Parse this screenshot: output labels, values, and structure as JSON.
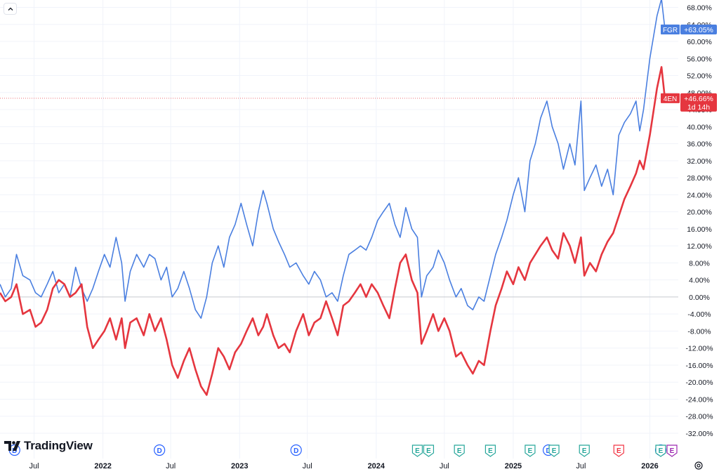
{
  "collapse_icon": "chevron-up-icon",
  "logo": {
    "text": "TradingView",
    "icon": "tradingview-logo-icon"
  },
  "settings_icon": "gear-icon",
  "colors": {
    "fgr": "#4a7fe0",
    "4en": "#e5363f",
    "zero_line": "#c7c9cf",
    "grid": "#f0f3fa",
    "axis_text": "#131722"
  },
  "chart_data": {
    "type": "line",
    "y_unit": "%",
    "ylim": [
      -32,
      68
    ],
    "y_ticks": [
      "68.00%",
      "64.00%",
      "60.00%",
      "56.00%",
      "52.00%",
      "48.00%",
      "44.00%",
      "40.00%",
      "36.00%",
      "32.00%",
      "28.00%",
      "24.00%",
      "20.00%",
      "16.00%",
      "12.00%",
      "8.00%",
      "4.00%",
      "0.00%",
      "-4.00%",
      "-8.00%",
      "-12.00%",
      "-16.00%",
      "-20.00%",
      "-24.00%",
      "-28.00%",
      "-32.00%"
    ],
    "x_ticks": [
      {
        "label": "Jul",
        "date": "2021-07-01",
        "bold": false
      },
      {
        "label": "2022",
        "date": "2022-01-01",
        "bold": true
      },
      {
        "label": "Jul",
        "date": "2022-07-01",
        "bold": false
      },
      {
        "label": "2023",
        "date": "2023-01-01",
        "bold": true
      },
      {
        "label": "Jul",
        "date": "2023-07-01",
        "bold": false
      },
      {
        "label": "2024",
        "date": "2024-01-01",
        "bold": true
      },
      {
        "label": "Jul",
        "date": "2024-07-01",
        "bold": false
      },
      {
        "label": "2025",
        "date": "2025-01-01",
        "bold": true
      },
      {
        "label": "Jul",
        "date": "2025-07-01",
        "bold": false
      },
      {
        "label": "2026",
        "date": "2026-01-01",
        "bold": true
      }
    ],
    "xlim": [
      "2021-04-01",
      "2026-03-01"
    ],
    "series": [
      {
        "name": "FGR",
        "color": "#4a7fe0",
        "last_label": "+63.05%",
        "points": [
          [
            "2021-04-01",
            3
          ],
          [
            "2021-04-15",
            0
          ],
          [
            "2021-05-01",
            2
          ],
          [
            "2021-05-15",
            10
          ],
          [
            "2021-06-01",
            5
          ],
          [
            "2021-06-20",
            4
          ],
          [
            "2021-07-05",
            1
          ],
          [
            "2021-07-20",
            0
          ],
          [
            "2021-08-05",
            3
          ],
          [
            "2021-08-20",
            6
          ],
          [
            "2021-09-05",
            1
          ],
          [
            "2021-09-20",
            3
          ],
          [
            "2021-10-05",
            0
          ],
          [
            "2021-10-20",
            7
          ],
          [
            "2021-11-05",
            2
          ],
          [
            "2021-11-20",
            -1
          ],
          [
            "2021-12-05",
            2
          ],
          [
            "2021-12-20",
            6
          ],
          [
            "2022-01-05",
            10
          ],
          [
            "2022-01-20",
            7
          ],
          [
            "2022-02-05",
            14
          ],
          [
            "2022-02-20",
            8
          ],
          [
            "2022-03-01",
            -1
          ],
          [
            "2022-03-15",
            6
          ],
          [
            "2022-04-01",
            10
          ],
          [
            "2022-04-20",
            7
          ],
          [
            "2022-05-05",
            10
          ],
          [
            "2022-05-20",
            9
          ],
          [
            "2022-06-05",
            4
          ],
          [
            "2022-06-20",
            7
          ],
          [
            "2022-07-05",
            0
          ],
          [
            "2022-07-20",
            2
          ],
          [
            "2022-08-05",
            6
          ],
          [
            "2022-08-20",
            2
          ],
          [
            "2022-09-05",
            -3
          ],
          [
            "2022-09-20",
            -5
          ],
          [
            "2022-10-05",
            0
          ],
          [
            "2022-10-20",
            8
          ],
          [
            "2022-11-05",
            12
          ],
          [
            "2022-11-20",
            7
          ],
          [
            "2022-12-05",
            14
          ],
          [
            "2022-12-20",
            17
          ],
          [
            "2023-01-05",
            22
          ],
          [
            "2023-01-20",
            17
          ],
          [
            "2023-02-05",
            12
          ],
          [
            "2023-02-20",
            20
          ],
          [
            "2023-03-05",
            25
          ],
          [
            "2023-03-15",
            22
          ],
          [
            "2023-04-01",
            16
          ],
          [
            "2023-04-15",
            13
          ],
          [
            "2023-05-01",
            10
          ],
          [
            "2023-05-15",
            7
          ],
          [
            "2023-06-01",
            8
          ],
          [
            "2023-06-20",
            5
          ],
          [
            "2023-07-05",
            3
          ],
          [
            "2023-07-20",
            6
          ],
          [
            "2023-08-05",
            4
          ],
          [
            "2023-08-20",
            0
          ],
          [
            "2023-09-05",
            1
          ],
          [
            "2023-09-20",
            -1
          ],
          [
            "2023-10-05",
            5
          ],
          [
            "2023-10-20",
            10
          ],
          [
            "2023-11-05",
            11
          ],
          [
            "2023-11-20",
            12
          ],
          [
            "2023-12-05",
            11
          ],
          [
            "2023-12-20",
            14
          ],
          [
            "2024-01-05",
            18
          ],
          [
            "2024-01-20",
            20
          ],
          [
            "2024-02-05",
            22
          ],
          [
            "2024-02-20",
            17
          ],
          [
            "2024-03-05",
            14
          ],
          [
            "2024-03-20",
            21
          ],
          [
            "2024-04-05",
            16
          ],
          [
            "2024-04-20",
            14
          ],
          [
            "2024-05-01",
            0
          ],
          [
            "2024-05-15",
            5
          ],
          [
            "2024-06-01",
            7
          ],
          [
            "2024-06-15",
            11
          ],
          [
            "2024-07-01",
            8
          ],
          [
            "2024-07-15",
            4
          ],
          [
            "2024-08-01",
            0
          ],
          [
            "2024-08-15",
            2
          ],
          [
            "2024-09-01",
            -2
          ],
          [
            "2024-09-15",
            -3
          ],
          [
            "2024-10-01",
            0
          ],
          [
            "2024-10-15",
            -1
          ],
          [
            "2024-11-01",
            5
          ],
          [
            "2024-11-15",
            10
          ],
          [
            "2024-12-01",
            14
          ],
          [
            "2024-12-15",
            18
          ],
          [
            "2025-01-01",
            24
          ],
          [
            "2025-01-15",
            28
          ],
          [
            "2025-02-01",
            20
          ],
          [
            "2025-02-15",
            32
          ],
          [
            "2025-03-01",
            36
          ],
          [
            "2025-03-15",
            42
          ],
          [
            "2025-04-01",
            46
          ],
          [
            "2025-04-15",
            40
          ],
          [
            "2025-05-01",
            36
          ],
          [
            "2025-05-15",
            30
          ],
          [
            "2025-06-01",
            36
          ],
          [
            "2025-06-15",
            31
          ],
          [
            "2025-07-01",
            46
          ],
          [
            "2025-07-10",
            25
          ],
          [
            "2025-07-25",
            28
          ],
          [
            "2025-08-10",
            31
          ],
          [
            "2025-08-25",
            26
          ],
          [
            "2025-09-10",
            30
          ],
          [
            "2025-09-25",
            24
          ],
          [
            "2025-10-10",
            38
          ],
          [
            "2025-10-25",
            41
          ],
          [
            "2025-11-10",
            43
          ],
          [
            "2025-11-25",
            46
          ],
          [
            "2025-12-05",
            39
          ],
          [
            "2025-12-15",
            44
          ],
          [
            "2026-01-01",
            56
          ],
          [
            "2026-01-20",
            66
          ],
          [
            "2026-02-01",
            70
          ],
          [
            "2026-02-10",
            63.05
          ]
        ]
      },
      {
        "name": "4EN",
        "color": "#e5363f",
        "last_label": "+46.66%",
        "sub_label": "1d 14h",
        "points": [
          [
            "2021-04-01",
            1
          ],
          [
            "2021-04-15",
            -1
          ],
          [
            "2021-05-01",
            0
          ],
          [
            "2021-05-15",
            3
          ],
          [
            "2021-06-01",
            -4
          ],
          [
            "2021-06-20",
            -3
          ],
          [
            "2021-07-05",
            -7
          ],
          [
            "2021-07-20",
            -6
          ],
          [
            "2021-08-05",
            -3
          ],
          [
            "2021-08-20",
            2
          ],
          [
            "2021-09-05",
            4
          ],
          [
            "2021-09-20",
            3
          ],
          [
            "2021-10-05",
            0
          ],
          [
            "2021-10-20",
            1
          ],
          [
            "2021-11-05",
            3
          ],
          [
            "2021-11-20",
            -7
          ],
          [
            "2021-12-05",
            -12
          ],
          [
            "2021-12-20",
            -10
          ],
          [
            "2022-01-05",
            -8
          ],
          [
            "2022-01-20",
            -5
          ],
          [
            "2022-02-05",
            -10
          ],
          [
            "2022-02-20",
            -5
          ],
          [
            "2022-03-01",
            -12
          ],
          [
            "2022-03-15",
            -6
          ],
          [
            "2022-04-01",
            -5
          ],
          [
            "2022-04-20",
            -9
          ],
          [
            "2022-05-05",
            -4
          ],
          [
            "2022-05-20",
            -8
          ],
          [
            "2022-06-05",
            -5
          ],
          [
            "2022-06-20",
            -10
          ],
          [
            "2022-07-05",
            -16
          ],
          [
            "2022-07-20",
            -19
          ],
          [
            "2022-08-05",
            -15
          ],
          [
            "2022-08-20",
            -12
          ],
          [
            "2022-09-05",
            -17
          ],
          [
            "2022-09-20",
            -21
          ],
          [
            "2022-10-05",
            -23
          ],
          [
            "2022-10-20",
            -18
          ],
          [
            "2022-11-05",
            -12
          ],
          [
            "2022-11-20",
            -14
          ],
          [
            "2022-12-05",
            -17
          ],
          [
            "2022-12-20",
            -13
          ],
          [
            "2023-01-05",
            -11
          ],
          [
            "2023-01-20",
            -8
          ],
          [
            "2023-02-05",
            -5
          ],
          [
            "2023-02-20",
            -9
          ],
          [
            "2023-03-05",
            -7
          ],
          [
            "2023-03-15",
            -4
          ],
          [
            "2023-04-01",
            -9
          ],
          [
            "2023-04-15",
            -12
          ],
          [
            "2023-05-01",
            -11
          ],
          [
            "2023-05-15",
            -13
          ],
          [
            "2023-06-01",
            -8
          ],
          [
            "2023-06-20",
            -4
          ],
          [
            "2023-07-05",
            -9
          ],
          [
            "2023-07-20",
            -6
          ],
          [
            "2023-08-05",
            -5
          ],
          [
            "2023-08-20",
            -1
          ],
          [
            "2023-09-05",
            -5
          ],
          [
            "2023-09-20",
            -9
          ],
          [
            "2023-10-05",
            -2
          ],
          [
            "2023-10-20",
            -1
          ],
          [
            "2023-11-05",
            1
          ],
          [
            "2023-11-20",
            3
          ],
          [
            "2023-12-05",
            0
          ],
          [
            "2023-12-20",
            3
          ],
          [
            "2024-01-05",
            1
          ],
          [
            "2024-01-20",
            -2
          ],
          [
            "2024-02-05",
            -5
          ],
          [
            "2024-02-20",
            2
          ],
          [
            "2024-03-05",
            8
          ],
          [
            "2024-03-20",
            10
          ],
          [
            "2024-04-05",
            4
          ],
          [
            "2024-04-20",
            1
          ],
          [
            "2024-05-01",
            -11
          ],
          [
            "2024-05-15",
            -8
          ],
          [
            "2024-06-01",
            -4
          ],
          [
            "2024-06-15",
            -8
          ],
          [
            "2024-07-01",
            -5
          ],
          [
            "2024-07-15",
            -8
          ],
          [
            "2024-08-01",
            -14
          ],
          [
            "2024-08-15",
            -13
          ],
          [
            "2024-09-01",
            -16
          ],
          [
            "2024-09-15",
            -18
          ],
          [
            "2024-10-01",
            -15
          ],
          [
            "2024-10-15",
            -16
          ],
          [
            "2024-11-01",
            -8
          ],
          [
            "2024-11-15",
            -2
          ],
          [
            "2024-12-01",
            2
          ],
          [
            "2024-12-15",
            6
          ],
          [
            "2025-01-01",
            3
          ],
          [
            "2025-01-15",
            7
          ],
          [
            "2025-02-01",
            4
          ],
          [
            "2025-02-15",
            8
          ],
          [
            "2025-03-01",
            10
          ],
          [
            "2025-03-15",
            12
          ],
          [
            "2025-04-01",
            14
          ],
          [
            "2025-04-15",
            11
          ],
          [
            "2025-05-01",
            9
          ],
          [
            "2025-05-15",
            15
          ],
          [
            "2025-06-01",
            12
          ],
          [
            "2025-06-15",
            8
          ],
          [
            "2025-07-01",
            14
          ],
          [
            "2025-07-10",
            5
          ],
          [
            "2025-07-25",
            8
          ],
          [
            "2025-08-10",
            6
          ],
          [
            "2025-08-25",
            10
          ],
          [
            "2025-09-10",
            13
          ],
          [
            "2025-09-25",
            15
          ],
          [
            "2025-10-10",
            19
          ],
          [
            "2025-10-25",
            23
          ],
          [
            "2025-11-10",
            26
          ],
          [
            "2025-11-25",
            29
          ],
          [
            "2025-12-05",
            32
          ],
          [
            "2025-12-15",
            30
          ],
          [
            "2026-01-01",
            38
          ],
          [
            "2026-01-20",
            49
          ],
          [
            "2026-02-01",
            54
          ],
          [
            "2026-02-10",
            46.66
          ]
        ]
      }
    ],
    "events": [
      {
        "type": "D",
        "date": "2021-05-10",
        "color": "#2962ff"
      },
      {
        "type": "D",
        "date": "2022-06-01",
        "color": "#2962ff"
      },
      {
        "type": "D",
        "date": "2023-06-01",
        "color": "#2962ff"
      },
      {
        "type": "E",
        "date": "2024-04-20",
        "color": "#26a69a"
      },
      {
        "type": "E",
        "date": "2024-05-20",
        "color": "#26a69a"
      },
      {
        "type": "E",
        "date": "2024-08-10",
        "color": "#26a69a"
      },
      {
        "type": "E",
        "date": "2024-11-01",
        "color": "#26a69a"
      },
      {
        "type": "E",
        "date": "2025-02-15",
        "color": "#26a69a"
      },
      {
        "type": "D",
        "date": "2025-04-05",
        "color": "#2962ff"
      },
      {
        "type": "E",
        "date": "2025-04-20",
        "color": "#26a69a"
      },
      {
        "type": "E",
        "date": "2025-07-10",
        "color": "#26a69a"
      },
      {
        "type": "E",
        "date": "2025-10-10",
        "color": "#f23645"
      },
      {
        "type": "D",
        "date": "2026-01-30",
        "color": "#2962ff"
      },
      {
        "type": "E",
        "date": "2026-01-30",
        "color": "#26a69a"
      },
      {
        "type": "E",
        "date": "2026-03-01",
        "color": "#9c27b0"
      }
    ]
  }
}
